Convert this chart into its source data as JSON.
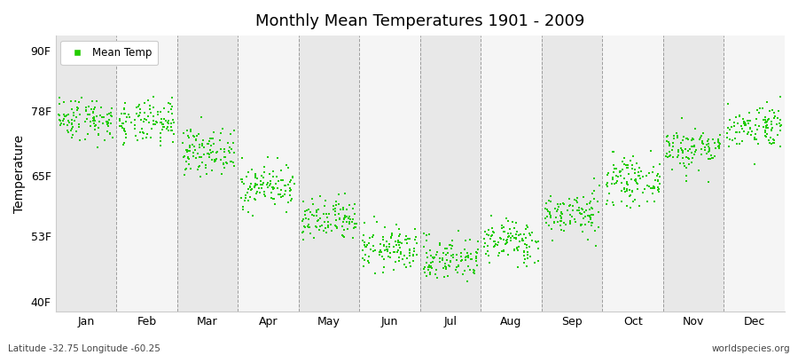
{
  "title": "Monthly Mean Temperatures 1901 - 2009",
  "ylabel": "Temperature",
  "footer_left": "Latitude -32.75 Longitude -60.25",
  "footer_right": "worldspecies.org",
  "legend_label": "Mean Temp",
  "dot_color": "#22cc00",
  "dot_size": 3,
  "months": [
    "Jan",
    "Feb",
    "Mar",
    "Apr",
    "May",
    "Jun",
    "Jul",
    "Aug",
    "Sep",
    "Oct",
    "Nov",
    "Dec"
  ],
  "yticks": [
    40,
    53,
    65,
    78,
    90
  ],
  "ylim": [
    38,
    93
  ],
  "bg_colors": [
    "#e8e8e8",
    "#f5f5f5"
  ],
  "monthly_means": [
    76.5,
    75.5,
    70.0,
    63.0,
    56.0,
    50.5,
    48.5,
    52.0,
    57.5,
    64.0,
    70.5,
    75.0
  ],
  "monthly_stds": [
    2.2,
    2.2,
    2.2,
    2.2,
    2.2,
    2.2,
    2.2,
    2.2,
    2.2,
    2.2,
    2.2,
    2.2
  ],
  "n_years": 109,
  "random_seed": 42
}
